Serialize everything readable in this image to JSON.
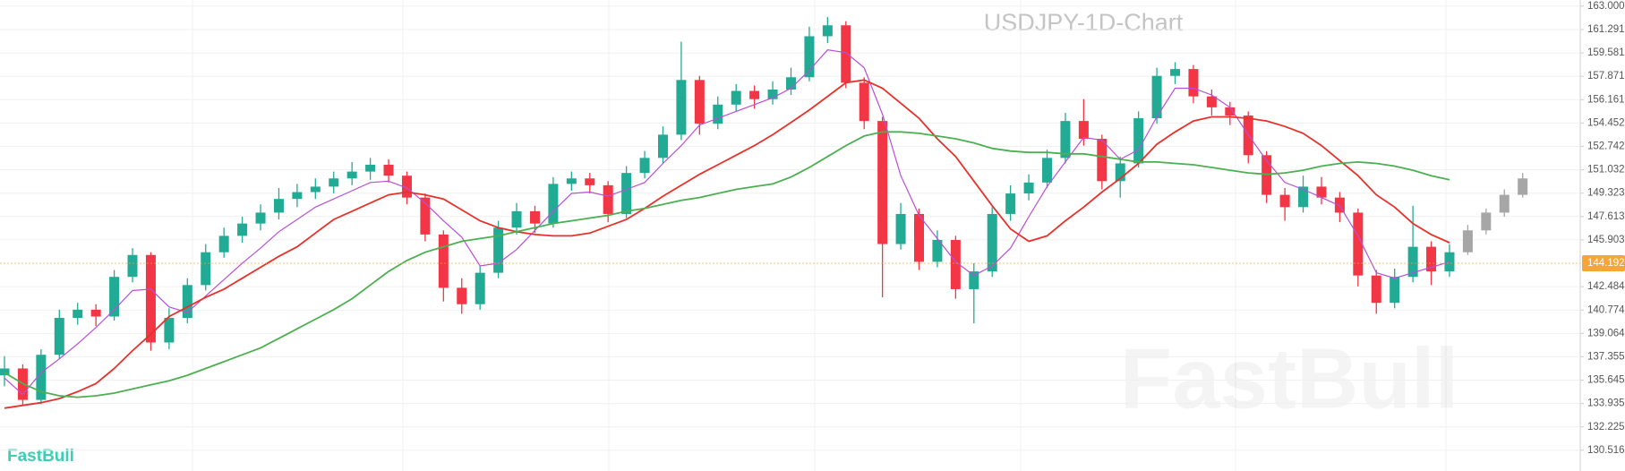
{
  "chart_data": {
    "type": "candlestick",
    "title": "USDJPY-1D-Chart",
    "watermark": "FastBull",
    "logo": "FastBull",
    "ylim": [
      129.0,
      163.45
    ],
    "yticks": [
      {
        "value": 163,
        "label": "163.000"
      },
      161.291,
      159.581,
      157.871,
      156.161,
      154.452,
      152.742,
      151.032,
      149.323,
      147.613,
      145.903,
      142.484,
      140.774,
      139.064,
      137.355,
      135.645,
      133.935,
      132.225,
      130.516
    ],
    "grid": true,
    "current_price": 144.192,
    "colors": {
      "up": "#22ab94",
      "down": "#f23645",
      "projection": "#a6a6a6",
      "price_line": "#f7a534"
    },
    "candles": {
      "open": [
        136.0,
        136.5,
        134.2,
        137.5,
        140.2,
        140.8,
        140.3,
        143.2,
        144.8,
        138.4,
        140.2,
        142.6,
        145.0,
        146.2,
        147.1,
        147.9,
        148.9,
        149.4,
        149.8,
        150.4,
        150.9,
        151.4,
        150.6,
        149.0,
        146.3,
        142.4,
        141.2,
        143.5,
        146.8,
        148.0,
        147.1,
        150.0,
        150.4,
        149.9,
        147.8,
        150.8,
        151.9,
        153.6,
        157.6,
        154.4,
        155.8,
        156.8,
        156.2,
        156.9,
        157.8,
        160.8,
        161.6,
        157.4,
        154.6,
        145.6,
        147.8,
        144.3,
        145.9,
        142.3,
        143.6,
        147.8,
        149.3,
        150.1,
        151.9,
        154.6,
        153.3,
        150.2,
        151.5,
        154.8,
        157.9,
        158.4,
        156.4,
        155.6,
        155.0,
        152.1,
        149.2,
        148.3,
        149.8,
        149.0,
        147.9,
        143.3,
        141.3,
        143.2,
        145.4,
        143.6
      ],
      "high": [
        137.4,
        136.8,
        137.9,
        140.8,
        141.3,
        141.2,
        143.7,
        145.3,
        145.0,
        140.9,
        143.1,
        145.6,
        146.8,
        147.6,
        148.5,
        149.7,
        150.0,
        150.4,
        150.9,
        151.6,
        151.9,
        151.8,
        150.9,
        149.3,
        146.6,
        143.1,
        144.0,
        147.3,
        148.6,
        148.4,
        150.5,
        150.9,
        150.8,
        150.2,
        151.3,
        152.4,
        154.2,
        160.4,
        157.9,
        156.4,
        157.3,
        157.2,
        157.5,
        158.5,
        161.5,
        162.2,
        161.9,
        157.8,
        154.9,
        148.6,
        148.2,
        146.6,
        146.2,
        144.2,
        148.3,
        149.9,
        150.7,
        152.5,
        155.2,
        156.2,
        153.6,
        152.0,
        155.3,
        158.5,
        158.9,
        158.7,
        156.9,
        156.0,
        155.3,
        152.4,
        149.7,
        150.6,
        150.5,
        149.4,
        148.2,
        143.7,
        143.8,
        148.4,
        145.8,
        145.6
      ],
      "low": [
        135.2,
        133.8,
        133.9,
        137.2,
        139.7,
        139.6,
        140.0,
        142.8,
        137.8,
        137.9,
        139.8,
        142.2,
        144.6,
        145.7,
        146.6,
        147.4,
        148.3,
        148.9,
        149.3,
        149.9,
        150.3,
        150.1,
        148.5,
        145.8,
        141.4,
        140.5,
        140.8,
        143.1,
        146.3,
        146.4,
        146.8,
        149.5,
        149.3,
        147.2,
        147.5,
        150.4,
        151.5,
        153.2,
        153.6,
        154.0,
        155.3,
        155.5,
        155.8,
        156.5,
        157.5,
        160.3,
        157.0,
        154.0,
        141.7,
        145.2,
        143.7,
        143.9,
        141.6,
        139.8,
        143.2,
        147.3,
        148.8,
        149.7,
        151.5,
        152.8,
        149.6,
        149.0,
        151.2,
        154.4,
        157.3,
        155.9,
        155.0,
        154.3,
        151.5,
        148.6,
        147.3,
        147.9,
        148.5,
        147.2,
        142.5,
        140.5,
        140.9,
        142.8,
        142.6,
        143.2
      ],
      "close": [
        136.5,
        134.2,
        137.5,
        140.2,
        140.8,
        140.3,
        143.2,
        144.8,
        138.4,
        140.2,
        142.6,
        145.0,
        146.2,
        147.1,
        147.9,
        148.9,
        149.4,
        149.8,
        150.4,
        150.9,
        151.4,
        150.6,
        149.0,
        146.3,
        142.4,
        141.2,
        143.5,
        146.8,
        148.0,
        147.1,
        150.0,
        150.4,
        149.9,
        147.8,
        150.8,
        151.9,
        153.6,
        157.6,
        154.4,
        155.8,
        156.8,
        156.2,
        156.9,
        157.8,
        160.8,
        161.6,
        157.4,
        154.6,
        145.6,
        147.8,
        144.3,
        145.9,
        142.3,
        143.6,
        147.8,
        149.3,
        150.1,
        151.9,
        154.6,
        153.3,
        150.2,
        151.5,
        154.8,
        157.9,
        158.4,
        156.4,
        155.6,
        155.0,
        152.1,
        149.2,
        148.3,
        149.8,
        149.0,
        147.9,
        143.3,
        141.3,
        143.2,
        145.4,
        143.6,
        145.0
      ]
    },
    "projection": {
      "open": [
        145.0,
        146.6,
        147.9,
        149.2
      ],
      "high": [
        147.0,
        148.2,
        149.6,
        150.8
      ],
      "low": [
        144.8,
        146.3,
        147.6,
        149.0
      ],
      "close": [
        146.6,
        147.9,
        149.2,
        150.4
      ]
    },
    "moving_averages": [
      {
        "color": "#b84fd8",
        "values": [
          135.8,
          134.6,
          136.2,
          137.2,
          138.3,
          139.5,
          140.8,
          142.2,
          142.3,
          141.0,
          140.6,
          141.8,
          143.0,
          144.2,
          145.3,
          146.5,
          147.4,
          148.3,
          148.9,
          149.5,
          150.1,
          150.2,
          149.7,
          148.6,
          147.3,
          146.1,
          144.0,
          144.2,
          145.2,
          146.6,
          148.0,
          149.3,
          149.4,
          149.1,
          149.6,
          150.1,
          151.5,
          152.8,
          154.3,
          154.8,
          155.3,
          155.8,
          156.3,
          157.0,
          158.3,
          159.8,
          159.6,
          158.5,
          155.1,
          150.6,
          147.7,
          146.0,
          144.3,
          143.3,
          144.0,
          145.3,
          147.6,
          149.8,
          151.6,
          153.4,
          153.2,
          151.8,
          152.5,
          154.9,
          157.0,
          157.0,
          156.5,
          155.6,
          153.6,
          151.7,
          150.1,
          149.6,
          149.0,
          148.4,
          146.2,
          143.5,
          143.1,
          143.5,
          143.9,
          144.3
        ]
      },
      {
        "color": "#e8312a",
        "values": [
          133.6,
          133.8,
          134.0,
          134.3,
          134.8,
          135.4,
          136.5,
          137.8,
          139.0,
          140.3,
          141.0,
          141.7,
          142.3,
          143.1,
          143.9,
          144.7,
          145.4,
          146.4,
          147.4,
          148.0,
          148.6,
          149.2,
          149.4,
          149.2,
          148.9,
          148.1,
          147.3,
          146.8,
          146.5,
          146.3,
          146.2,
          146.2,
          146.4,
          146.9,
          147.4,
          148.2,
          149.1,
          149.9,
          150.7,
          151.4,
          152.1,
          152.8,
          153.6,
          154.5,
          155.4,
          156.4,
          157.4,
          157.6,
          157.0,
          155.9,
          154.8,
          153.3,
          152.0,
          150.2,
          148.4,
          146.7,
          145.8,
          146.2,
          147.3,
          148.3,
          149.4,
          150.4,
          151.5,
          152.9,
          153.8,
          154.6,
          154.9,
          154.9,
          154.8,
          154.6,
          154.2,
          153.7,
          152.8,
          151.7,
          150.6,
          149.2,
          148.3,
          147.1,
          146.3,
          145.7
        ]
      },
      {
        "color": "#4caf50",
        "values": [
          136.2,
          135.4,
          134.8,
          134.5,
          134.4,
          134.5,
          134.7,
          135.0,
          135.3,
          135.6,
          136.0,
          136.5,
          137.0,
          137.5,
          138.0,
          138.7,
          139.4,
          140.1,
          140.8,
          141.6,
          142.6,
          143.6,
          144.4,
          145.0,
          145.4,
          145.8,
          146.0,
          146.2,
          146.5,
          146.8,
          147.1,
          147.3,
          147.5,
          147.7,
          148.0,
          148.2,
          148.5,
          148.8,
          149.0,
          149.3,
          149.6,
          149.8,
          150.0,
          150.5,
          151.2,
          152.0,
          152.8,
          153.5,
          153.8,
          153.8,
          153.7,
          153.5,
          153.3,
          153.0,
          152.6,
          152.4,
          152.3,
          152.3,
          152.2,
          152.2,
          152.0,
          151.8,
          151.6,
          151.6,
          151.5,
          151.4,
          151.2,
          151.0,
          150.8,
          150.7,
          150.8,
          151.0,
          151.3,
          151.5,
          151.6,
          151.5,
          151.3,
          151.0,
          150.6,
          150.3
        ]
      }
    ]
  }
}
